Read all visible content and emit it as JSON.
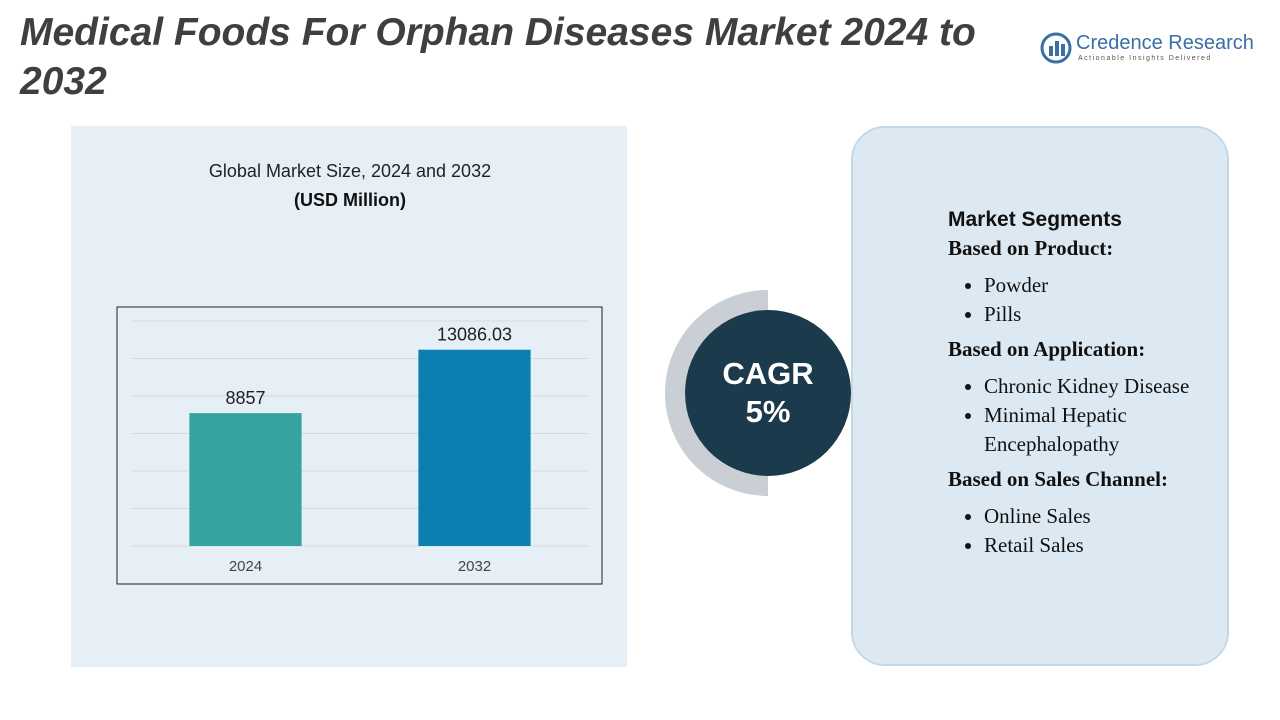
{
  "title": "Medical Foods For Orphan Diseases Market 2024 to 2032",
  "logo": {
    "name": "Credence Research",
    "tagline": "Actionable Insights Delivered"
  },
  "chart_data": {
    "type": "bar",
    "title": "Global Market Size, 2024 and 2032",
    "subtitle": "(USD Million)",
    "categories": [
      "2024",
      "2032"
    ],
    "values": [
      8857,
      13086.03
    ],
    "colors": [
      "#35a39f",
      "#0a7fb0"
    ],
    "ylim": [
      0,
      15000
    ],
    "yticks": [
      0,
      2500,
      5000,
      7500,
      10000,
      12500,
      15000
    ],
    "grid": true
  },
  "cagr": {
    "label": "CAGR",
    "value": "5%"
  },
  "segments": {
    "heading": "Market Segments",
    "groups": [
      {
        "title": "Based on Product:",
        "items": [
          "Powder",
          "Pills"
        ]
      },
      {
        "title": "Based on Application:",
        "items": [
          "Chronic Kidney Disease",
          "Minimal Hepatic Encephalopathy"
        ]
      },
      {
        "title": "Based on Sales Channel:",
        "items": [
          "Online Sales",
          "Retail Sales"
        ]
      }
    ]
  }
}
